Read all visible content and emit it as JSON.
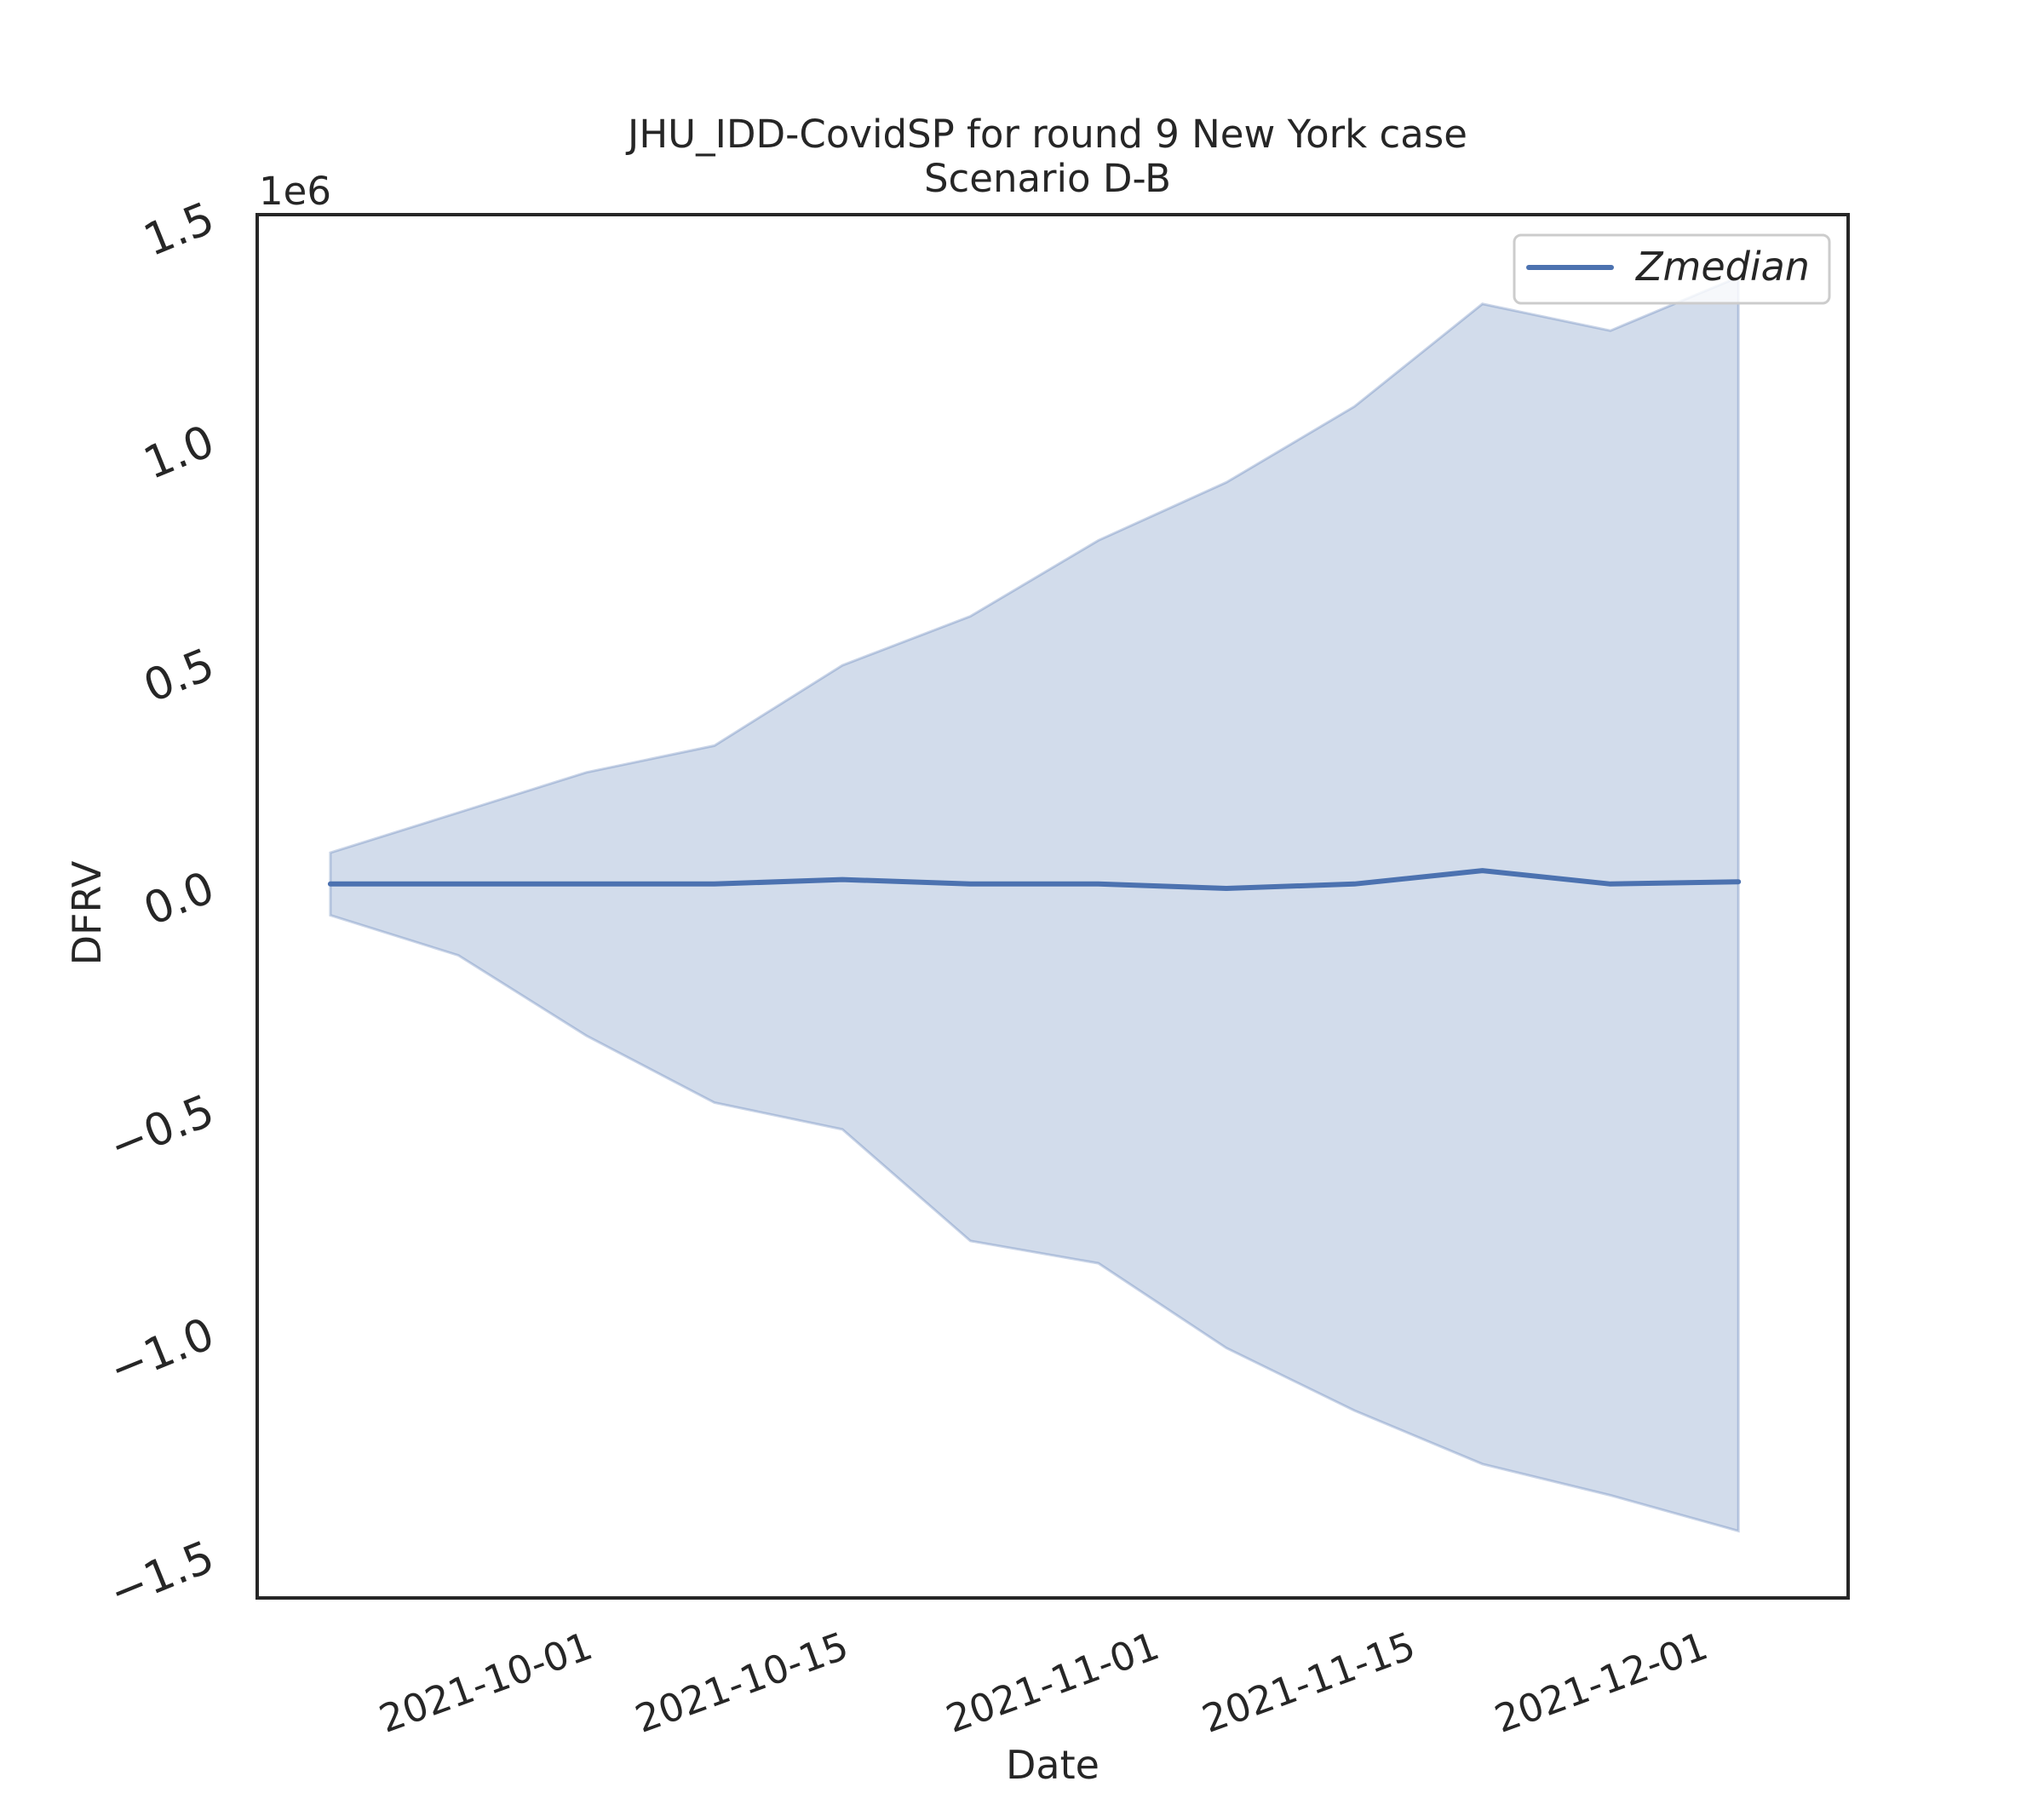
{
  "chart_data": {
    "type": "line",
    "title": "JHU_IDD-CovidSP for round 9 New York case",
    "subtitle": "Scenario D-B",
    "xlabel": "Date",
    "ylabel": "DFRV",
    "y_offset_label": "1e6",
    "ylim": [
      -1.6,
      1.5
    ],
    "xlim": [
      "2021-09-13",
      "2021-12-09"
    ],
    "x_ticks": [
      "2021-10-01",
      "2021-10-15",
      "2021-11-01",
      "2021-11-15",
      "2021-12-01"
    ],
    "y_ticks": [
      -1.5,
      -1.0,
      -0.5,
      0.0,
      0.5,
      1.0,
      1.5
    ],
    "y_tick_labels": [
      "−1.5",
      "−1.0",
      "−0.5",
      "0.0",
      "0.5",
      "1.0",
      "1.5"
    ],
    "grid": false,
    "legend_position": "top-right",
    "x": [
      "2021-09-17",
      "2021-09-24",
      "2021-10-01",
      "2021-10-08",
      "2021-10-15",
      "2021-10-22",
      "2021-10-29",
      "2021-11-05",
      "2021-11-12",
      "2021-11-19",
      "2021-11-26",
      "2021-12-03"
    ],
    "series": [
      {
        "name": "Zmedian",
        "color": "#4c72b0",
        "values": [
          0.0,
          0.0,
          0.0,
          0.0,
          0.01,
          0.0,
          0.0,
          -0.01,
          0.0,
          0.03,
          0.0,
          0.005
        ]
      }
    ],
    "band": {
      "color": "#4c72b0",
      "upper": [
        0.07,
        0.16,
        0.25,
        0.31,
        0.49,
        0.6,
        0.77,
        0.9,
        1.07,
        1.3,
        1.24,
        1.36
      ],
      "lower": [
        -0.07,
        -0.16,
        -0.34,
        -0.49,
        -0.55,
        -0.8,
        -0.85,
        -1.04,
        -1.18,
        -1.3,
        -1.37,
        -1.45
      ]
    }
  }
}
